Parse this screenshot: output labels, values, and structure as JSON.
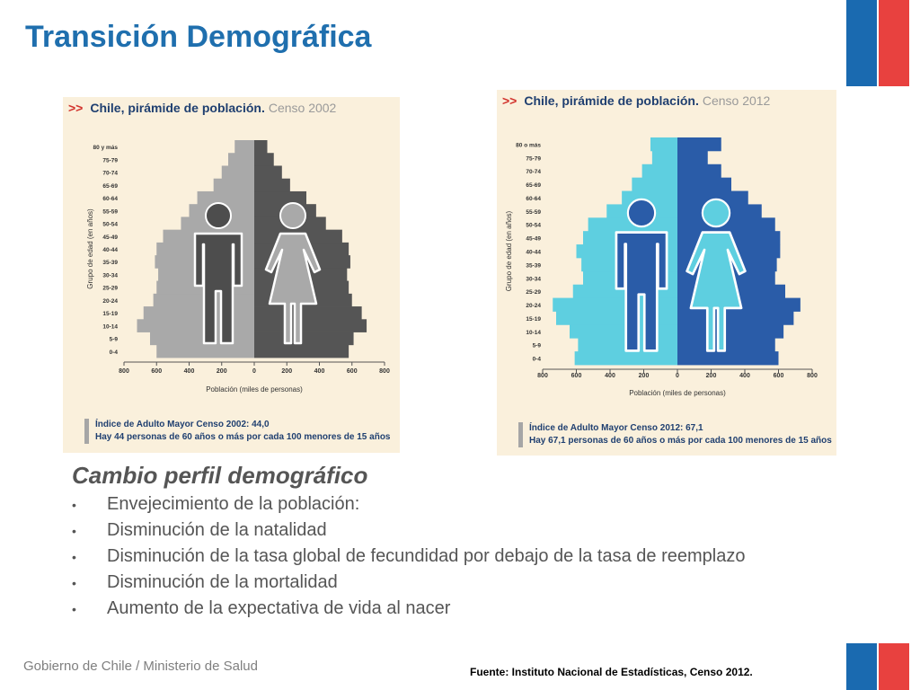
{
  "slide": {
    "title": "Transición Demográfica",
    "subtitle": "Cambio perfil demográfico",
    "bullets": [
      "Envejecimiento de la población:",
      "Disminución de la natalidad",
      "Disminución de la tasa global de fecundidad por debajo de la tasa de reemplazo",
      "Disminución de la mortalidad",
      "Aumento de la expectativa de vida al nacer"
    ],
    "footer_left": "Gobierno de Chile / Ministerio de Salud",
    "source": "Fuente: Instituto Nacional de Estadísticas, Censo 2012.",
    "bullet_char": "•"
  },
  "chart_data": [
    {
      "type": "bar",
      "orientation": "horizontal",
      "title_prefix": ">>",
      "title": "Chile, pirámide de población.",
      "subtitle": "Censo 2002",
      "xlabel": "Población (miles de personas)",
      "ylabel": "Grupo de edad (en años)",
      "xticks": [
        "800",
        "600",
        "400",
        "200",
        "0",
        "200",
        "400",
        "600",
        "800"
      ],
      "xlim": [
        -800,
        800
      ],
      "categories": [
        "0-4",
        "5-9",
        "10-14",
        "15-19",
        "20-24",
        "25-29",
        "30-34",
        "35-39",
        "40-44",
        "45-49",
        "50-54",
        "55-59",
        "60-64",
        "65-69",
        "70-74",
        "75-79",
        "80 y más"
      ],
      "series": [
        {
          "values": [
            -600,
            -640,
            -720,
            -680,
            -620,
            -600,
            -590,
            -610,
            -600,
            -560,
            -450,
            -400,
            -350,
            -250,
            -200,
            -160,
            -120
          ],
          "color": "#a9a9a9"
        },
        {
          "values": [
            580,
            610,
            690,
            660,
            600,
            580,
            570,
            590,
            580,
            540,
            440,
            380,
            320,
            220,
            170,
            120,
            80
          ],
          "color": "#555555"
        }
      ],
      "note_lines": [
        "Índice de Adulto Mayor Censo 2002: 44,0",
        "Hay 44 personas de 60 años o más por cada 100 menores de 15 años"
      ],
      "figure_colors": {
        "male": "#4d4d4d",
        "female": "#a9a9a9",
        "outline": "#ffffff"
      }
    },
    {
      "type": "bar",
      "orientation": "horizontal",
      "title_prefix": ">>",
      "title": "Chile, pirámide de población.",
      "subtitle": "Censo 2012",
      "xlabel": "Población (miles de personas)",
      "ylabel": "Grupo de edad (en años)",
      "xticks": [
        "800",
        "600",
        "400",
        "200",
        "0",
        "200",
        "400",
        "600",
        "800"
      ],
      "xlim": [
        -800,
        800
      ],
      "categories": [
        "0-4",
        "5-9",
        "10-14",
        "15-19",
        "20-24",
        "25-29",
        "30-34",
        "35-39",
        "40-44",
        "45-49",
        "50-54",
        "55-59",
        "60-64",
        "65-69",
        "70-74",
        "75-79",
        "80 o más"
      ],
      "series": [
        {
          "values": [
            -610,
            -590,
            -640,
            -720,
            -740,
            -620,
            -560,
            -570,
            -600,
            -560,
            -530,
            -420,
            -330,
            -270,
            -210,
            -150,
            -160
          ],
          "color": "#5ecfe0"
        },
        {
          "values": [
            600,
            580,
            630,
            690,
            730,
            640,
            580,
            590,
            610,
            610,
            580,
            500,
            420,
            320,
            260,
            180,
            260
          ],
          "color": "#2a5ca8"
        }
      ],
      "note_lines": [
        "Índice de Adulto Mayor Censo 2012: 67,1",
        "Hay 67,1 personas de 60 años o más por cada 100 menores de 15 años"
      ],
      "figure_colors": {
        "male": "#2a5ca8",
        "female": "#5ecfe0",
        "outline": "#ffffff"
      }
    }
  ]
}
